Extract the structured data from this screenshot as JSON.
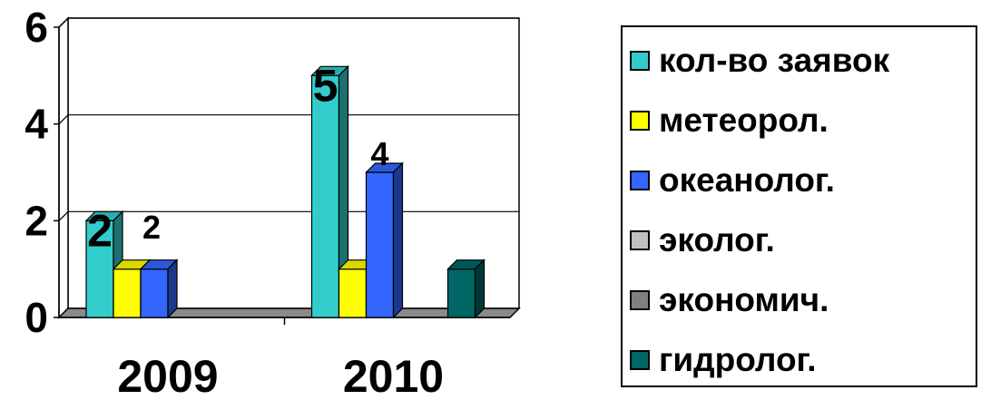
{
  "chart_data": {
    "type": "bar",
    "categories": [
      "2009",
      "2010"
    ],
    "ylim": [
      0,
      6
    ],
    "yticks": [
      "0",
      "2",
      "4",
      "6"
    ],
    "grid": true,
    "legend_position": "right",
    "series": [
      {
        "name": "кол-во заявок",
        "values": [
          2,
          5
        ],
        "color": "#33cccc"
      },
      {
        "name": "метеорол.",
        "values": [
          1,
          1
        ],
        "color": "#ffff00"
      },
      {
        "name": "океанолог.",
        "values": [
          1,
          3
        ],
        "color": "#3366ff"
      },
      {
        "name": "эколог.",
        "values": [
          0,
          0
        ],
        "color": "#c0c0c0"
      },
      {
        "name": "экономич.",
        "values": [
          0,
          0
        ],
        "color": "#808080"
      },
      {
        "name": "гидролог.",
        "values": [
          0,
          1
        ],
        "color": "#006666"
      }
    ],
    "data_labels": [
      {
        "text": "2",
        "category": 0,
        "series": 0,
        "size": "big"
      },
      {
        "text": "2",
        "category": 0,
        "series": 1,
        "size": "small"
      },
      {
        "text": "5",
        "category": 1,
        "series": 0,
        "size": "big"
      },
      {
        "text": "4",
        "category": 1,
        "series": 2,
        "size": "small"
      }
    ]
  }
}
